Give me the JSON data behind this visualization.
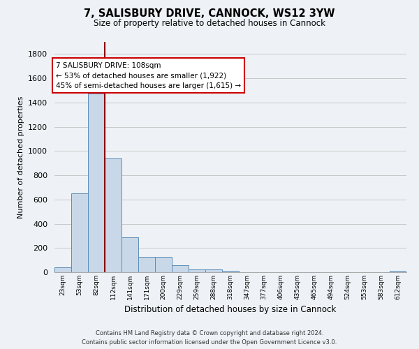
{
  "title1": "7, SALISBURY DRIVE, CANNOCK, WS12 3YW",
  "title2": "Size of property relative to detached houses in Cannock",
  "xlabel": "Distribution of detached houses by size in Cannock",
  "ylabel": "Number of detached properties",
  "bins": [
    "23sqm",
    "53sqm",
    "82sqm",
    "112sqm",
    "141sqm",
    "171sqm",
    "200sqm",
    "229sqm",
    "259sqm",
    "288sqm",
    "318sqm",
    "347sqm",
    "377sqm",
    "406sqm",
    "435sqm",
    "465sqm",
    "494sqm",
    "524sqm",
    "553sqm",
    "583sqm",
    "612sqm"
  ],
  "values": [
    38,
    650,
    1474,
    937,
    290,
    127,
    127,
    60,
    22,
    22,
    14,
    0,
    0,
    0,
    0,
    0,
    0,
    0,
    0,
    0,
    14
  ],
  "bar_color": "#c8d8e8",
  "bar_edge_color": "#5b8db8",
  "vline_color": "#8b0000",
  "vline_pos": 3.0,
  "annotation_text": "7 SALISBURY DRIVE: 108sqm\n← 53% of detached houses are smaller (1,922)\n45% of semi-detached houses are larger (1,615) →",
  "annotation_box_color": "#ffffff",
  "annotation_box_edge": "#cc0000",
  "ylim": [
    0,
    1900
  ],
  "yticks": [
    0,
    200,
    400,
    600,
    800,
    1000,
    1200,
    1400,
    1600,
    1800
  ],
  "footnote1": "Contains HM Land Registry data © Crown copyright and database right 2024.",
  "footnote2": "Contains public sector information licensed under the Open Government Licence v3.0.",
  "bg_color": "#eef2f6",
  "plot_bg_color": "#eef2f6",
  "grid_color": "#c8c8c8"
}
